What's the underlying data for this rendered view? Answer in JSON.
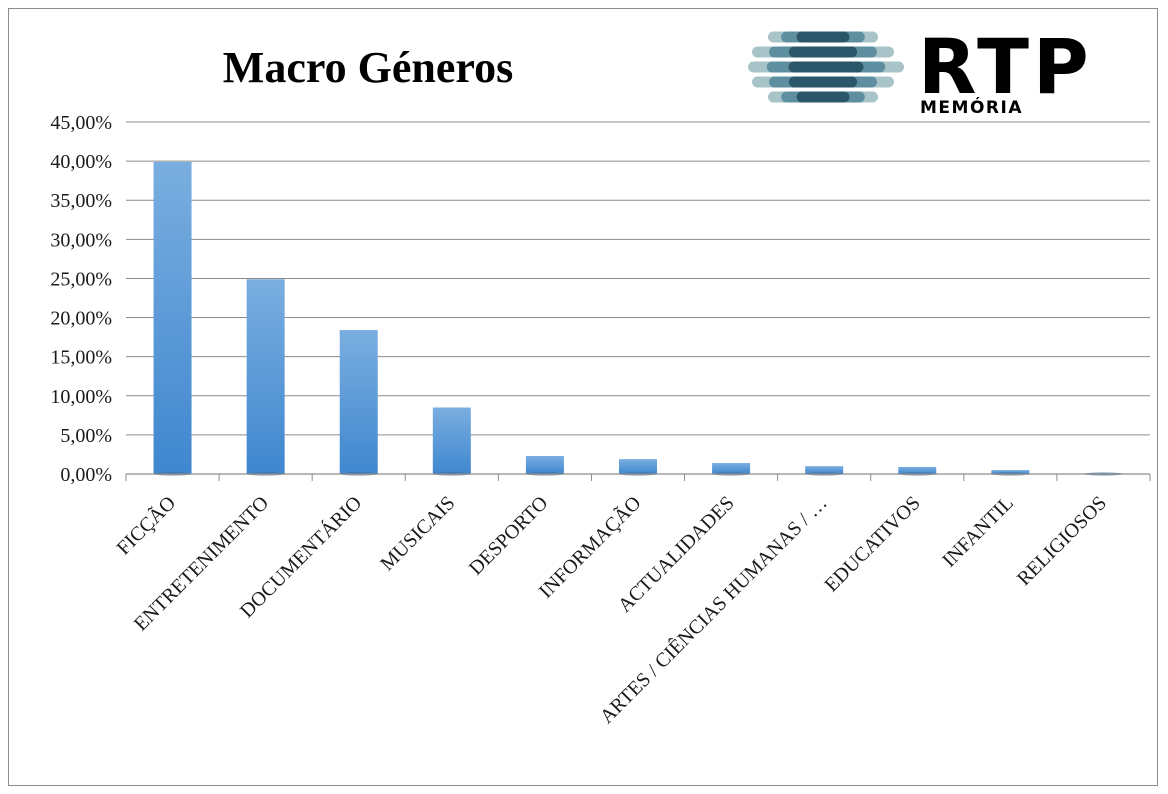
{
  "chart_data": {
    "type": "bar",
    "title": "Macro Géneros",
    "xlabel": "",
    "ylabel": "",
    "categories": [
      "FICÇÃO",
      "ENTRETENIMENTO",
      "DOCUMENTÁRIO",
      "MUSICAIS",
      "DESPORTO",
      "INFORMAÇÃO",
      "ACTUALIDADES",
      "ARTES / CIÊNCIAS HUMANAS / …",
      "EDUCATIVOS",
      "INFANTIL",
      "RELIGIOSOS"
    ],
    "values": [
      39.9,
      24.9,
      18.4,
      8.5,
      2.3,
      1.9,
      1.4,
      1.0,
      0.9,
      0.5,
      0.1
    ],
    "ylim": [
      0,
      45
    ],
    "yticks": [
      "0,00%",
      "5,00%",
      "10,00%",
      "15,00%",
      "20,00%",
      "25,00%",
      "30,00%",
      "35,00%",
      "40,00%",
      "45,00%"
    ],
    "grid": true,
    "legend": "none",
    "bar_color_top": "#7aaee0",
    "bar_color_bottom": "#3f87cf",
    "gridline_color": "#8c8c8c"
  },
  "logo": {
    "brand": "RTP",
    "subtitle": "MEMÓRIA",
    "stripe_colors": [
      "#a8c4c8",
      "#5d8fa0",
      "#2b5568"
    ]
  }
}
